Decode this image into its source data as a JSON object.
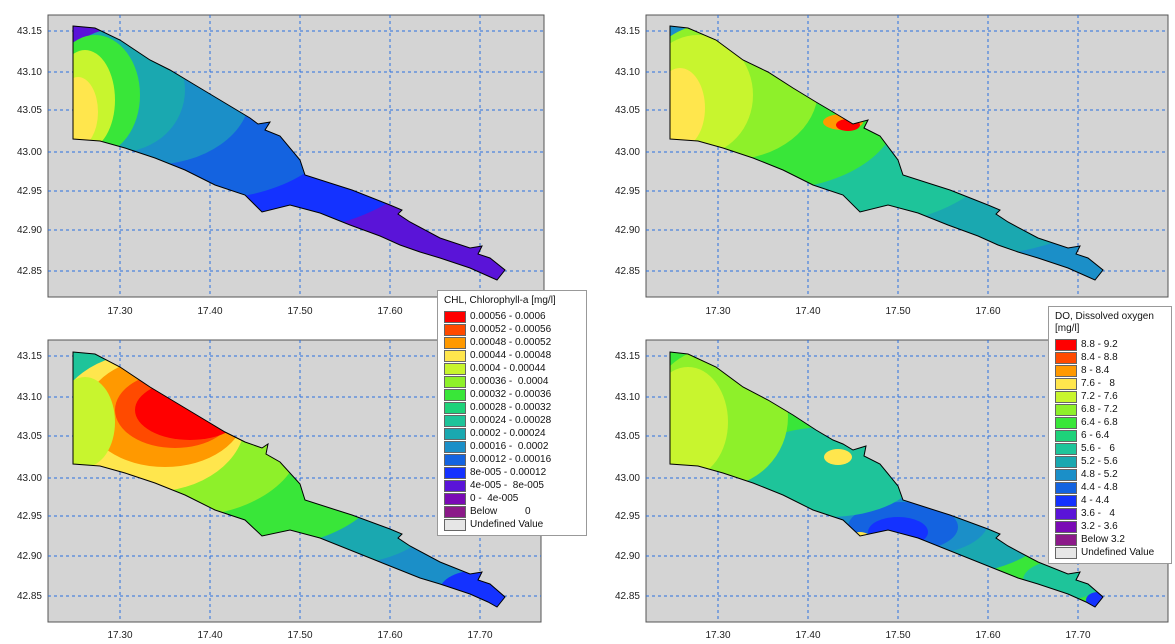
{
  "panels": [
    {
      "id": "chl-upper",
      "x_ticks": [
        "17.30",
        "17.40",
        "17.50",
        "17.60"
      ],
      "y_ticks": [
        "43.15",
        "43.10",
        "43.05",
        "43.00",
        "42.95",
        "42.90",
        "42.85"
      ]
    },
    {
      "id": "do-upper",
      "x_ticks": [
        "17.30",
        "17.40",
        "17.50",
        "17.60"
      ],
      "y_ticks": [
        "43.15",
        "43.10",
        "43.05",
        "43.00",
        "42.95",
        "42.90",
        "42.85"
      ]
    },
    {
      "id": "chl-lower",
      "x_ticks": [
        "17.30",
        "17.40",
        "17.50",
        "17.60",
        "17.70"
      ],
      "y_ticks": [
        "43.15",
        "43.10",
        "43.05",
        "43.00",
        "42.95",
        "42.90",
        "42.85"
      ]
    },
    {
      "id": "do-lower",
      "x_ticks": [
        "17.30",
        "17.40",
        "17.50",
        "17.60",
        "17.70"
      ],
      "y_ticks": [
        "43.15",
        "43.10",
        "43.05",
        "43.00",
        "42.95",
        "42.90",
        "42.85"
      ]
    }
  ],
  "legend_chl": {
    "title": "CHL, Chlorophyll-a [mg/l]",
    "items": [
      {
        "label": "0.00056 - 0.0006",
        "color": "#ff0000"
      },
      {
        "label": "0.00052 - 0.00056",
        "color": "#ff4a00"
      },
      {
        "label": "0.00048 - 0.00052",
        "color": "#ff9900"
      },
      {
        "label": "0.00044 - 0.00048",
        "color": "#ffe64d"
      },
      {
        "label": "0.0004 - 0.00044",
        "color": "#c8f52e"
      },
      {
        "label": "0.00036 -  0.0004",
        "color": "#8ef02a"
      },
      {
        "label": "0.00032 - 0.00036",
        "color": "#39e639"
      },
      {
        "label": "0.00028 - 0.00032",
        "color": "#1ed27a"
      },
      {
        "label": "0.00024 - 0.00028",
        "color": "#1ec49a"
      },
      {
        "label": "0.0002 - 0.00024",
        "color": "#1aa8b0"
      },
      {
        "label": "0.00016 -  0.0002",
        "color": "#1b8fc8"
      },
      {
        "label": "0.00012 - 0.00016",
        "color": "#1463e0"
      },
      {
        "label": "8e-005 - 0.00012",
        "color": "#1432ff"
      },
      {
        "label": "4e-005 -  8e-005",
        "color": "#5a14d8"
      },
      {
        "label": "0 -  4e-005",
        "color": "#7a0ab5"
      },
      {
        "label": "Below          0",
        "color": "#8b1a89"
      },
      {
        "label": "Undefined Value",
        "color": "#e6e6e6"
      }
    ]
  },
  "legend_do": {
    "title_line1": "DO, Dissolved oxygen",
    "title_line2": "[mg/l]",
    "items": [
      {
        "label": "8.8 - 9.2",
        "color": "#ff0000"
      },
      {
        "label": "8.4 - 8.8",
        "color": "#ff4a00"
      },
      {
        "label": "8 - 8.4",
        "color": "#ff9900"
      },
      {
        "label": "7.6 -   8",
        "color": "#ffe64d"
      },
      {
        "label": "7.2 - 7.6",
        "color": "#c8f52e"
      },
      {
        "label": "6.8 - 7.2",
        "color": "#8ef02a"
      },
      {
        "label": "6.4 - 6.8",
        "color": "#39e639"
      },
      {
        "label": "6 - 6.4",
        "color": "#1ed27a"
      },
      {
        "label": "5.6 -   6",
        "color": "#1ec49a"
      },
      {
        "label": "5.2 - 5.6",
        "color": "#1aa8b0"
      },
      {
        "label": "4.8 - 5.2",
        "color": "#1b8fc8"
      },
      {
        "label": "4.4 - 4.8",
        "color": "#1463e0"
      },
      {
        "label": "4 - 4.4",
        "color": "#1432ff"
      },
      {
        "label": "3.6 -   4",
        "color": "#5a14d8"
      },
      {
        "label": "3.2 - 3.6",
        "color": "#7a0ab5"
      },
      {
        "label": "Below 3.2",
        "color": "#8b1a89"
      },
      {
        "label": "Undefined Value",
        "color": "#e6e6e6"
      }
    ]
  }
}
